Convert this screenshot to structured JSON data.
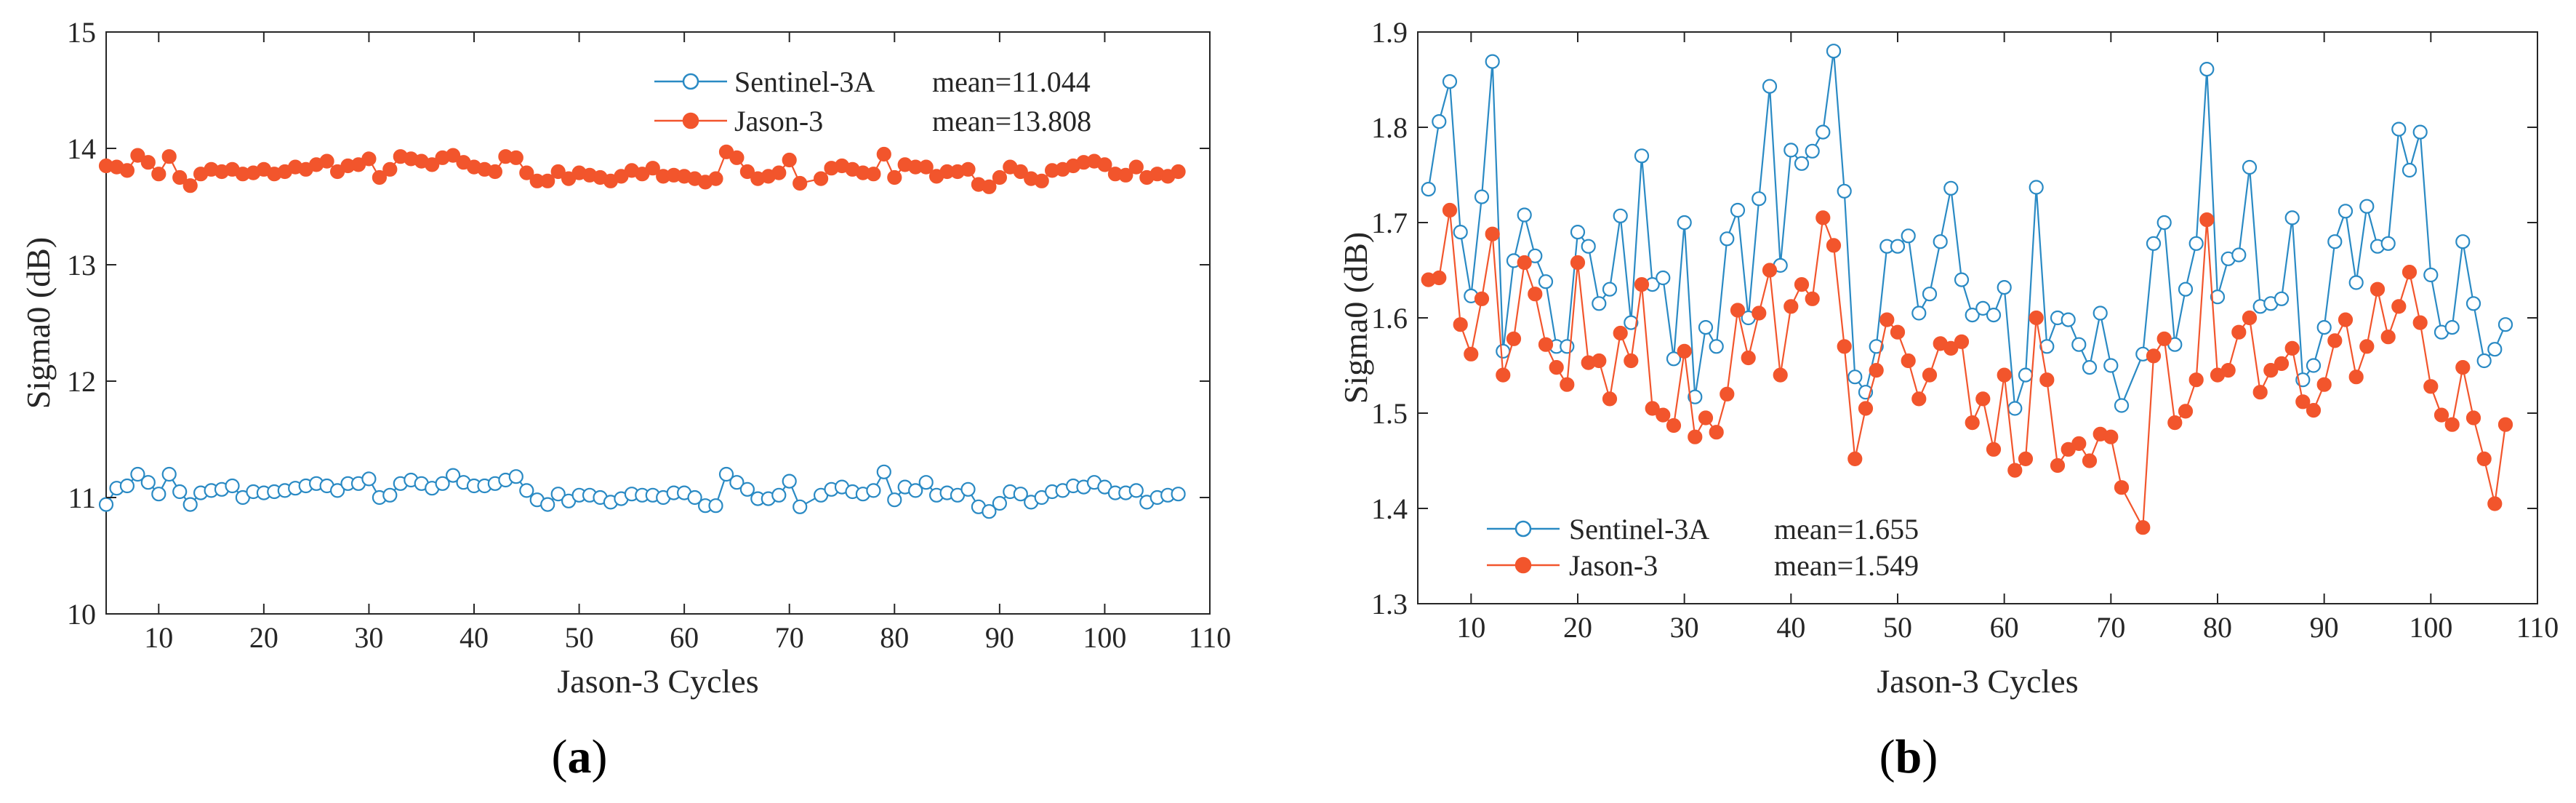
{
  "figure": {
    "panels": [
      "(a)",
      "(b)"
    ]
  },
  "chart_data": [
    {
      "id": "a",
      "type": "line",
      "panel_label": "(a)",
      "panel_letter": "a",
      "xlabel": "Jason-3 Cycles",
      "ylabel": "Sigma0 (dB)",
      "xlim": [
        5,
        110
      ],
      "ylim": [
        10,
        15
      ],
      "xticks": [
        10,
        20,
        30,
        40,
        50,
        60,
        70,
        80,
        90,
        100,
        110
      ],
      "yticks": [
        10,
        11,
        12,
        13,
        14,
        15
      ],
      "grid": false,
      "legend_position": "top-right",
      "x": [
        5,
        6,
        7,
        8,
        9,
        10,
        11,
        12,
        13,
        14,
        15,
        16,
        17,
        18,
        19,
        20,
        21,
        22,
        23,
        24,
        25,
        26,
        27,
        28,
        29,
        30,
        31,
        32,
        33,
        34,
        35,
        36,
        37,
        38,
        39,
        40,
        41,
        42,
        43,
        44,
        45,
        46,
        47,
        48,
        49,
        50,
        51,
        52,
        53,
        54,
        55,
        56,
        57,
        58,
        59,
        60,
        61,
        62,
        63,
        64,
        65,
        66,
        67,
        68,
        69,
        70,
        71,
        73,
        74,
        75,
        76,
        77,
        78,
        79,
        80,
        81,
        82,
        83,
        84,
        85,
        86,
        87,
        88,
        89,
        90,
        91,
        92,
        93,
        94,
        95,
        96,
        97,
        98,
        99,
        100,
        101,
        102,
        103,
        104,
        105,
        106,
        107
      ],
      "series": [
        {
          "name": "Sentinel-3A",
          "mean_label": "mean=11.044",
          "color": "#2a8ac4",
          "marker": "open-circle",
          "values": [
            10.94,
            11.08,
            11.1,
            11.2,
            11.13,
            11.03,
            11.2,
            11.05,
            10.94,
            11.04,
            11.06,
            11.07,
            11.1,
            11.0,
            11.05,
            11.04,
            11.05,
            11.06,
            11.08,
            11.1,
            11.12,
            11.1,
            11.06,
            11.12,
            11.12,
            11.16,
            11.0,
            11.02,
            11.12,
            11.15,
            11.12,
            11.08,
            11.12,
            11.19,
            11.13,
            11.1,
            11.1,
            11.12,
            11.15,
            11.18,
            11.06,
            10.98,
            10.94,
            11.03,
            10.97,
            11.02,
            11.02,
            11.0,
            10.96,
            10.99,
            11.03,
            11.02,
            11.02,
            11.0,
            11.04,
            11.04,
            11.0,
            10.93,
            10.93,
            11.2,
            11.13,
            11.07,
            10.99,
            10.99,
            11.02,
            11.14,
            10.92,
            11.02,
            11.07,
            11.09,
            11.05,
            11.03,
            11.06,
            11.22,
            10.98,
            11.09,
            11.06,
            11.13,
            11.02,
            11.04,
            11.02,
            11.07,
            10.92,
            10.88,
            10.95,
            11.05,
            11.03,
            10.96,
            11.0,
            11.05,
            11.06,
            11.1,
            11.09,
            11.13,
            11.09,
            11.04,
            11.04,
            11.06,
            10.96,
            11.0,
            11.02,
            11.03
          ]
        },
        {
          "name": "Jason-3",
          "mean_label": "mean=13.808",
          "color": "#f2552c",
          "marker": "filled-circle",
          "values": [
            13.85,
            13.84,
            13.81,
            13.94,
            13.88,
            13.78,
            13.93,
            13.75,
            13.68,
            13.78,
            13.82,
            13.8,
            13.82,
            13.78,
            13.79,
            13.82,
            13.78,
            13.8,
            13.84,
            13.82,
            13.86,
            13.89,
            13.8,
            13.85,
            13.86,
            13.91,
            13.75,
            13.82,
            13.93,
            13.91,
            13.89,
            13.86,
            13.92,
            13.94,
            13.88,
            13.84,
            13.82,
            13.8,
            13.93,
            13.92,
            13.79,
            13.72,
            13.72,
            13.8,
            13.74,
            13.79,
            13.77,
            13.75,
            13.72,
            13.76,
            13.81,
            13.78,
            13.83,
            13.76,
            13.77,
            13.76,
            13.74,
            13.71,
            13.74,
            13.97,
            13.92,
            13.8,
            13.74,
            13.76,
            13.79,
            13.9,
            13.7,
            13.74,
            13.83,
            13.85,
            13.82,
            13.79,
            13.78,
            13.95,
            13.75,
            13.86,
            13.84,
            13.84,
            13.76,
            13.8,
            13.8,
            13.82,
            13.69,
            13.67,
            13.75,
            13.84,
            13.8,
            13.74,
            13.72,
            13.81,
            13.82,
            13.85,
            13.88,
            13.89,
            13.86,
            13.78,
            13.77,
            13.84,
            13.75,
            13.78,
            13.76,
            13.8
          ]
        }
      ]
    },
    {
      "id": "b",
      "type": "line",
      "panel_label": "(b)",
      "panel_letter": "b",
      "xlabel": "Jason-3 Cycles",
      "ylabel": "Sigma0 (dB)",
      "xlim": [
        5,
        110
      ],
      "ylim": [
        1.3,
        1.9
      ],
      "xticks": [
        10,
        20,
        30,
        40,
        50,
        60,
        70,
        80,
        90,
        100,
        110
      ],
      "yticks": [
        1.3,
        1.4,
        1.5,
        1.6,
        1.7,
        1.8,
        1.9
      ],
      "grid": false,
      "legend_position": "bottom-left",
      "x": [
        6,
        7,
        8,
        9,
        10,
        11,
        12,
        13,
        14,
        15,
        16,
        17,
        18,
        19,
        20,
        21,
        22,
        23,
        24,
        25,
        26,
        27,
        28,
        29,
        30,
        31,
        32,
        33,
        34,
        35,
        36,
        37,
        38,
        39,
        40,
        41,
        42,
        43,
        44,
        45,
        46,
        47,
        48,
        49,
        50,
        51,
        52,
        53,
        54,
        55,
        56,
        57,
        58,
        59,
        60,
        61,
        62,
        63,
        64,
        65,
        66,
        67,
        68,
        69,
        70,
        71,
        73,
        74,
        75,
        76,
        77,
        78,
        79,
        80,
        81,
        82,
        83,
        84,
        85,
        86,
        87,
        88,
        89,
        90,
        91,
        92,
        93,
        94,
        95,
        96,
        97,
        98,
        99,
        100,
        101,
        102,
        103,
        104,
        105,
        106,
        107
      ],
      "series": [
        {
          "name": "Sentinel-3A",
          "mean_label": "mean=1.655",
          "color": "#2a8ac4",
          "marker": "open-circle",
          "values": [
            1.735,
            1.806,
            1.848,
            1.69,
            1.623,
            1.727,
            1.869,
            1.565,
            1.66,
            1.708,
            1.665,
            1.638,
            1.57,
            1.57,
            1.69,
            1.675,
            1.615,
            1.63,
            1.707,
            1.595,
            1.77,
            1.635,
            1.642,
            1.557,
            1.7,
            1.517,
            1.59,
            1.57,
            1.683,
            1.713,
            1.6,
            1.725,
            1.843,
            1.655,
            1.776,
            1.762,
            1.775,
            1.795,
            1.88,
            1.733,
            1.538,
            1.522,
            1.57,
            1.675,
            1.675,
            1.686,
            1.605,
            1.625,
            1.68,
            1.736,
            1.64,
            1.603,
            1.61,
            1.603,
            1.632,
            1.505,
            1.54,
            1.737,
            1.57,
            1.6,
            1.598,
            1.572,
            1.548,
            1.605,
            1.55,
            1.508,
            1.562,
            1.678,
            1.7,
            1.572,
            1.63,
            1.678,
            1.861,
            1.622,
            1.662,
            1.666,
            1.758,
            1.612,
            1.615,
            1.62,
            1.705,
            1.535,
            1.55,
            1.59,
            1.68,
            1.712,
            1.637,
            1.717,
            1.675,
            1.678,
            1.798,
            1.755,
            1.795,
            1.645,
            1.585,
            1.59,
            1.68,
            1.615,
            1.555,
            1.567,
            1.593
          ]
        },
        {
          "name": "Jason-3",
          "mean_label": "mean=1.549",
          "color": "#f2552c",
          "marker": "filled-circle",
          "values": [
            1.64,
            1.642,
            1.713,
            1.593,
            1.562,
            1.62,
            1.688,
            1.54,
            1.578,
            1.658,
            1.625,
            1.572,
            1.548,
            1.53,
            1.658,
            1.553,
            1.555,
            1.515,
            1.584,
            1.555,
            1.635,
            1.505,
            1.498,
            1.487,
            1.565,
            1.475,
            1.495,
            1.48,
            1.52,
            1.608,
            1.558,
            1.605,
            1.65,
            1.54,
            1.612,
            1.635,
            1.62,
            1.705,
            1.676,
            1.57,
            1.452,
            1.505,
            1.545,
            1.598,
            1.585,
            1.555,
            1.515,
            1.54,
            1.573,
            1.568,
            1.575,
            1.49,
            1.515,
            1.462,
            1.54,
            1.44,
            1.452,
            1.6,
            1.535,
            1.445,
            1.462,
            1.468,
            1.45,
            1.478,
            1.475,
            1.422,
            1.38,
            1.56,
            1.578,
            1.49,
            1.502,
            1.535,
            1.703,
            1.54,
            1.545,
            1.585,
            1.6,
            1.522,
            1.545,
            1.552,
            1.568,
            1.512,
            1.503,
            1.53,
            1.576,
            1.598,
            1.538,
            1.57,
            1.63,
            1.58,
            1.612,
            1.648,
            1.595,
            1.528,
            1.498,
            1.488,
            1.548,
            1.495,
            1.452,
            1.405,
            1.488
          ]
        }
      ]
    }
  ]
}
